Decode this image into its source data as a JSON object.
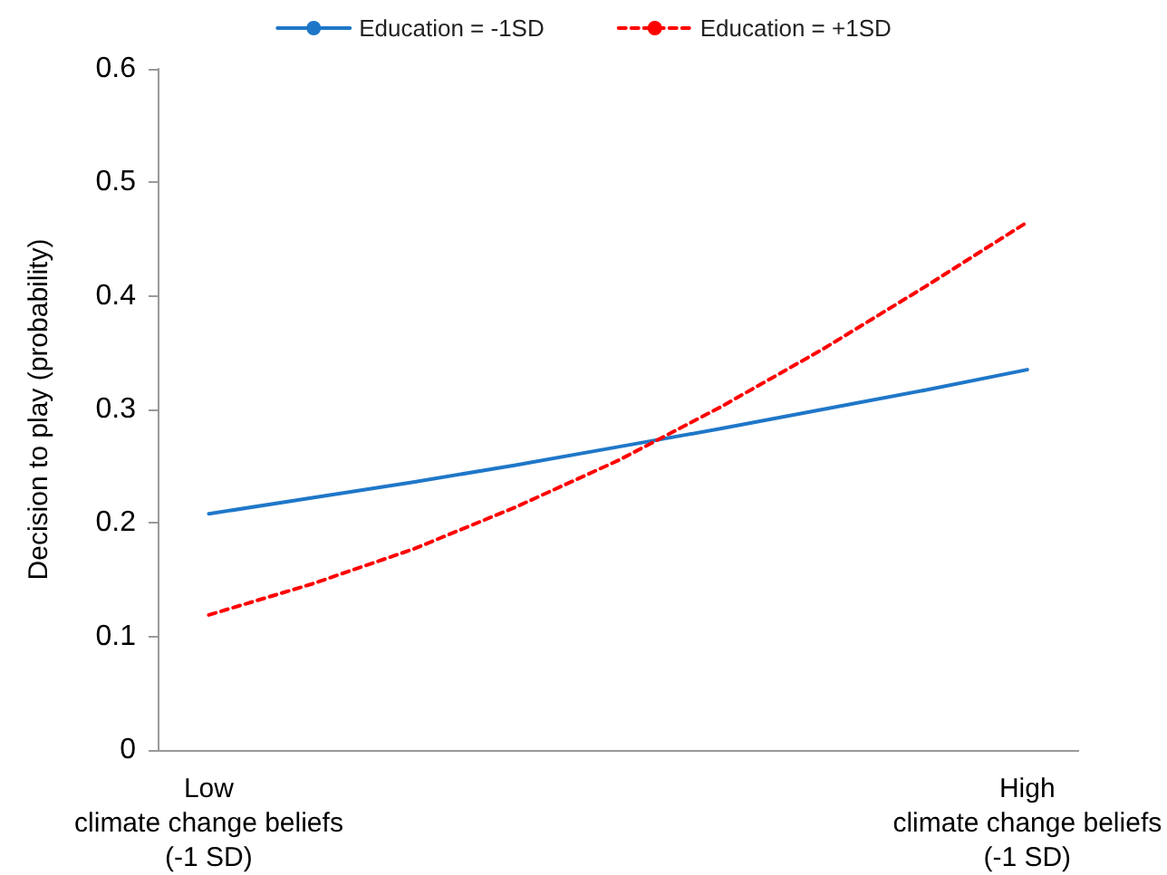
{
  "chart_data": {
    "type": "line",
    "ylabel": "Decision to play (probability)",
    "categories": [
      "Low\nclimate change beliefs\n(-1 SD)",
      null,
      null,
      null,
      null,
      null,
      null,
      null,
      "High\nclimate change beliefs\n(-1 SD)"
    ],
    "ylim": [
      0,
      0.6
    ],
    "yticks": [
      0,
      0.1,
      0.2,
      0.3,
      0.4,
      0.5,
      0.6
    ],
    "series": [
      {
        "name": "Education = -1SD",
        "color": "#1f77c8",
        "line_style": "solid",
        "values": [
          0.208,
          0.222,
          0.236,
          0.251,
          0.267,
          0.283,
          0.3,
          0.317,
          0.335
        ]
      },
      {
        "name": "Education = +1SD",
        "color": "#ff0000",
        "line_style": "dashed",
        "values": [
          0.119,
          0.146,
          0.177,
          0.214,
          0.255,
          0.302,
          0.353,
          0.408,
          0.465
        ]
      }
    ],
    "grid": false,
    "legend": "top",
    "marker": "none"
  }
}
